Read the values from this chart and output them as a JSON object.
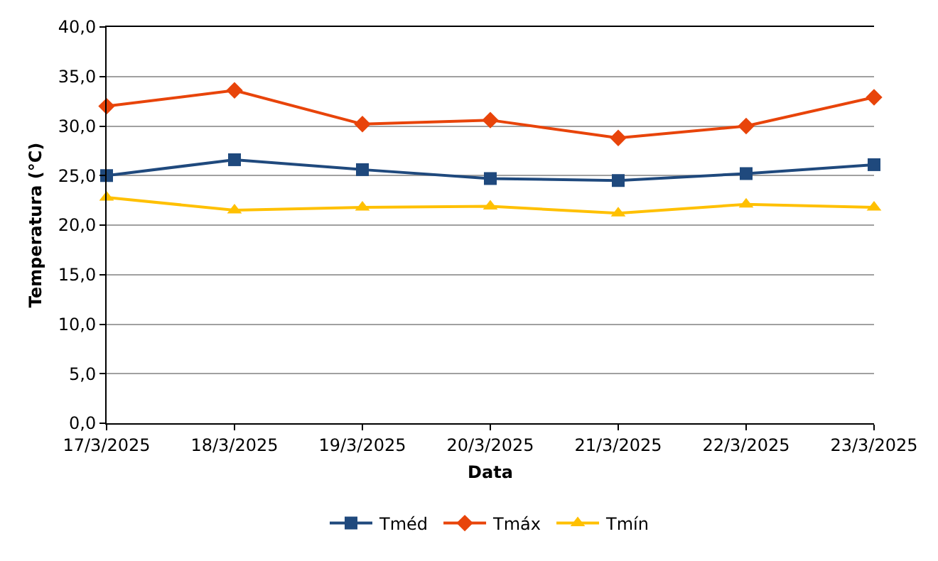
{
  "chart_data": {
    "type": "line",
    "xlabel": "Data",
    "ylabel": "Temperatura (°C)",
    "categories": [
      "17/3/2025",
      "18/3/2025",
      "19/3/2025",
      "20/3/2025",
      "21/3/2025",
      "22/3/2025",
      "23/3/2025"
    ],
    "series": [
      {
        "name": "Tméd",
        "color": "#1f497d",
        "marker": "square",
        "values": [
          25.0,
          26.6,
          25.6,
          24.7,
          24.5,
          25.2,
          26.1
        ]
      },
      {
        "name": "Tmáx",
        "color": "#e8440a",
        "marker": "diamond",
        "values": [
          32.0,
          33.6,
          30.2,
          30.6,
          28.8,
          30.0,
          32.9
        ]
      },
      {
        "name": "Tmín",
        "color": "#ffc000",
        "marker": "triangle",
        "values": [
          22.8,
          21.5,
          21.8,
          21.9,
          21.2,
          22.1,
          21.8
        ]
      }
    ],
    "ylim": [
      0,
      40
    ],
    "yticks": [
      {
        "value": 0,
        "label": "0,0"
      },
      {
        "value": 5,
        "label": "5,0"
      },
      {
        "value": 10,
        "label": "10,0"
      },
      {
        "value": 15,
        "label": "15,0"
      },
      {
        "value": 20,
        "label": "20,0"
      },
      {
        "value": 25,
        "label": "25,0"
      },
      {
        "value": 30,
        "label": "30,0"
      },
      {
        "value": 35,
        "label": "35,0"
      },
      {
        "value": 40,
        "label": "40,0"
      }
    ],
    "grid": "y",
    "legend": "bottom"
  }
}
